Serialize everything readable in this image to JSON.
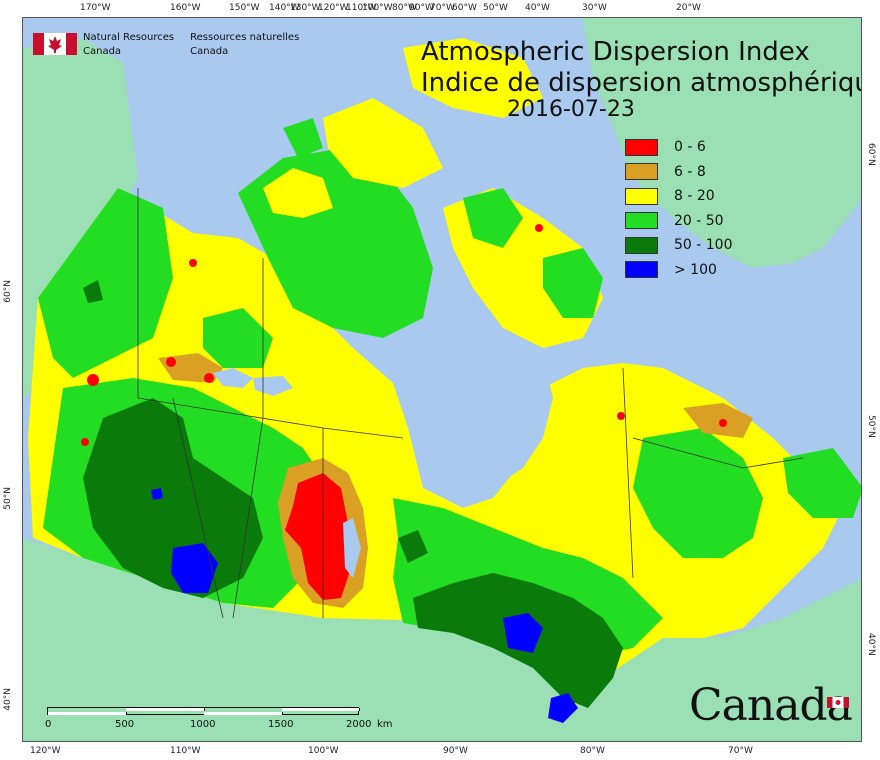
{
  "map": {
    "title_en": "Atmospheric Dispersion Index",
    "title_fr": "Indice de dispersion atmosphérique",
    "date": "2016-07-23"
  },
  "agency": {
    "name_en_line1": "Natural Resources",
    "name_en_line2": "Canada",
    "name_fr_line1": "Ressources naturelles",
    "name_fr_line2": "Canada"
  },
  "wordmark": "Canada",
  "legend": [
    {
      "label": "0 - 6",
      "color": "#ff0000"
    },
    {
      "label": "6 - 8",
      "color": "#d9a023"
    },
    {
      "label": "8 - 20",
      "color": "#ffff00"
    },
    {
      "label": "20 - 50",
      "color": "#22dd22"
    },
    {
      "label": "50 - 100",
      "color": "#0a7a0a"
    },
    {
      "label": "> 100",
      "color": "#0000ff"
    }
  ],
  "graticule": {
    "top": [
      "170°W",
      "160°W",
      "150°W",
      "140°W",
      "130°W",
      "120°W",
      "110°W",
      "100°W",
      "90°W",
      "80°W",
      "70°W",
      "60°W",
      "50°W",
      "40°W",
      "30°W",
      "20°W"
    ],
    "bottom": [
      "120°W",
      "110°W",
      "100°W",
      "90°W",
      "80°W",
      "70°W"
    ],
    "left": [
      "40°N",
      "50°N",
      "60°N"
    ],
    "right": [
      "40°N",
      "50°N",
      "60°N"
    ]
  },
  "scale_bar": {
    "labels": [
      "0",
      "500",
      "1000",
      "1500",
      "2000"
    ],
    "unit": "km"
  },
  "colors": {
    "ocean": "#a9c9ef",
    "foreign_land": "#9be0b4"
  }
}
